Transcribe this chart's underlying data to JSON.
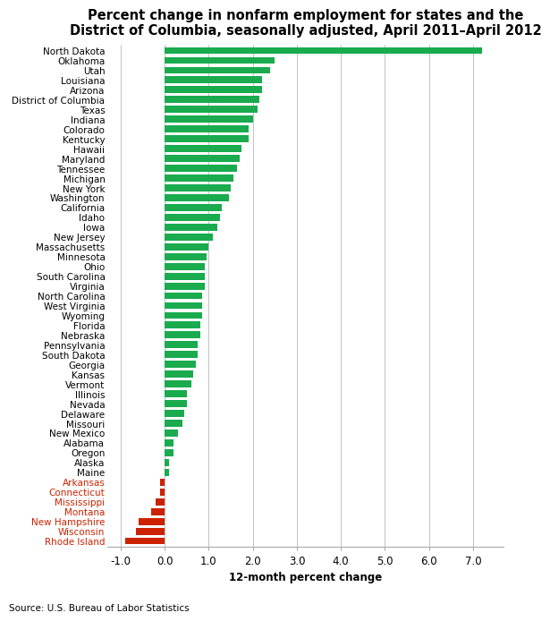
{
  "title_line1": "Percent change in nonfarm employment for states and the",
  "title_line2": "District of Columbia, seasonally adjusted, April 2011–April 2012",
  "xlabel": "12-month percent change",
  "source": "Source: U.S. Bureau of Labor Statistics",
  "states": [
    "North Dakota",
    "Oklahoma",
    "Utah",
    "Louisiana",
    "Arizona",
    "District of Columbia",
    "Texas",
    "Indiana",
    "Colorado",
    "Kentucky",
    "Hawaii",
    "Maryland",
    "Tennessee",
    "Michigan",
    "New York",
    "Washington",
    "California",
    "Idaho",
    "Iowa",
    "New Jersey",
    "Massachusetts",
    "Minnesota",
    "Ohio",
    "South Carolina",
    "Virginia",
    "North Carolina",
    "West Virginia",
    "Wyoming",
    "Florida",
    "Nebraska",
    "Pennsylvania",
    "South Dakota",
    "Georgia",
    "Kansas",
    "Vermont",
    "Illinois",
    "Nevada",
    "Delaware",
    "Missouri",
    "New Mexico",
    "Alabama",
    "Oregon",
    "Alaska",
    "Maine",
    "Arkansas",
    "Connecticut",
    "Mississippi",
    "Montana",
    "New Hampshire",
    "Wisconsin",
    "Rhode Island"
  ],
  "values": [
    7.2,
    2.5,
    2.4,
    2.2,
    2.2,
    2.15,
    2.1,
    2.0,
    1.9,
    1.9,
    1.75,
    1.7,
    1.65,
    1.55,
    1.5,
    1.45,
    1.3,
    1.25,
    1.2,
    1.1,
    1.0,
    0.95,
    0.9,
    0.9,
    0.9,
    0.85,
    0.85,
    0.85,
    0.8,
    0.8,
    0.75,
    0.75,
    0.7,
    0.65,
    0.6,
    0.5,
    0.5,
    0.45,
    0.4,
    0.3,
    0.2,
    0.2,
    0.1,
    0.1,
    -0.1,
    -0.1,
    -0.2,
    -0.3,
    -0.6,
    -0.65,
    -0.9
  ],
  "positive_color": "#1aab4e",
  "negative_color": "#cc2200",
  "xlim": [
    -1.3,
    7.7
  ],
  "xticks": [
    -1.0,
    0.0,
    1.0,
    2.0,
    3.0,
    4.0,
    5.0,
    6.0,
    7.0
  ],
  "xtick_labels": [
    "-1.0",
    "0.0",
    "1.0",
    "2.0",
    "3.0",
    "4.0",
    "5.0",
    "6.0",
    "7.0"
  ],
  "bar_height": 0.72,
  "title_fontsize": 10.5,
  "label_fontsize": 7.5,
  "tick_fontsize": 8.5,
  "source_fontsize": 7.5
}
